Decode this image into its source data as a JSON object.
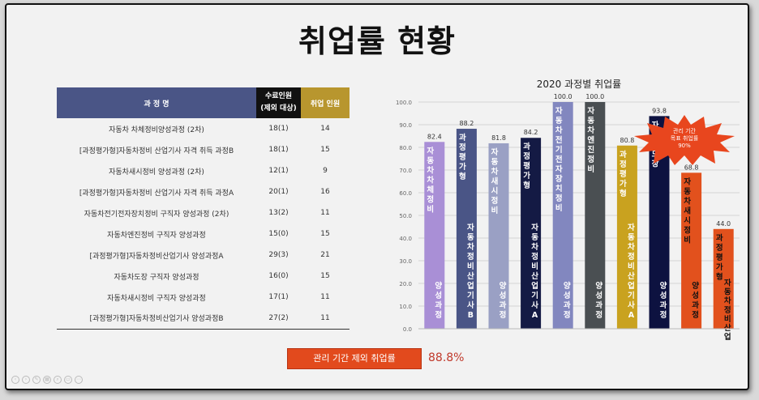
{
  "title": "취업률 현황",
  "table": {
    "headers": {
      "course": "과 정 명",
      "completed": [
        "수료인원",
        "(제외 대상)"
      ],
      "employed": "취업 인원"
    },
    "rows": [
      {
        "course": "자동차 차체정비양성과정 (2차)",
        "completed": "18(1)",
        "employed": "14"
      },
      {
        "course": "[과정평가형]자동차정비 산업기사 자격 취득 과정B",
        "completed": "18(1)",
        "employed": "15"
      },
      {
        "course": "자동차새시정비 양성과정 (2차)",
        "completed": "12(1)",
        "employed": "9"
      },
      {
        "course": "[과정평가형]자동차정비 산업기사 자격 취득 과정A",
        "completed": "20(1)",
        "employed": "16"
      },
      {
        "course": "자동차전기전자장치정비 구직자 양성과정 (2차)",
        "completed": "13(2)",
        "employed": "11"
      },
      {
        "course": "자동차엔진정비 구직자 양성과정",
        "completed": "15(0)",
        "employed": "15"
      },
      {
        "course": "[과정평가형]자동차정비산업기사 양성과정A",
        "completed": "29(3)",
        "employed": "21"
      },
      {
        "course": "자동차도장 구직자 양성과정",
        "completed": "16(0)",
        "employed": "15"
      },
      {
        "course": "자동차새시정비 구직자 양성과정",
        "completed": "17(1)",
        "employed": "11"
      },
      {
        "course": "[과정평가형]자동차정비산업기사 양성과정B",
        "completed": "27(2)",
        "employed": "11"
      }
    ]
  },
  "summary": {
    "label": "관리 기간 제외 취업률",
    "value": "88.8%"
  },
  "callout": {
    "line1": "관리 기간",
    "line2": "목표 취업률",
    "line3": "90%",
    "color": "#e8461e"
  },
  "chart_data": {
    "type": "bar",
    "title": "2020 과정별 취업률",
    "ylim": [
      0,
      100
    ],
    "yticks": [
      0,
      10,
      20,
      30,
      40,
      50,
      60,
      70,
      80,
      90,
      100
    ],
    "grid": true,
    "bars": [
      {
        "value": 82.4,
        "color": "#a98fd6",
        "text_color": "#ffffff",
        "lines": [
          "자동차차체정비",
          "양성과정"
        ]
      },
      {
        "value": 88.2,
        "color": "#4a5586",
        "text_color": "#ffffff",
        "lines": [
          "과정평가형",
          "자동차정비산업기사B"
        ]
      },
      {
        "value": 81.8,
        "color": "#9aa0c4",
        "text_color": "#ffffff",
        "lines": [
          "자동차새시정비",
          "양성과정"
        ]
      },
      {
        "value": 84.2,
        "color": "#141a44",
        "text_color": "#ffffff",
        "lines": [
          "과정평가형",
          "자동차정비산업기사A"
        ]
      },
      {
        "value": 100.0,
        "color": "#8287bf",
        "text_color": "#ffffff",
        "lines": [
          "자동차전기전자장치정비",
          "양성과정"
        ]
      },
      {
        "value": 100.0,
        "color": "#4a4f52",
        "text_color": "#ffffff",
        "lines": [
          "자동차엔진정비",
          "양성과정"
        ]
      },
      {
        "value": 80.8,
        "color": "#c9a21f",
        "text_color": "#ffffff",
        "lines": [
          "과정평가형",
          "자동차정비산업기사A"
        ]
      },
      {
        "value": 93.8,
        "color": "#0d1240",
        "text_color": "#ffffff",
        "lines": [
          "자동차도장",
          "양성과정"
        ]
      },
      {
        "value": 68.8,
        "color": "#e2511d",
        "text_color": "#111111",
        "lines": [
          "자동차새시정비",
          "양성과정"
        ]
      },
      {
        "value": 44.0,
        "color": "#e2511d",
        "text_color": "#111111",
        "lines": [
          "과정평가형",
          "자동차정비산업기사B"
        ]
      }
    ]
  }
}
